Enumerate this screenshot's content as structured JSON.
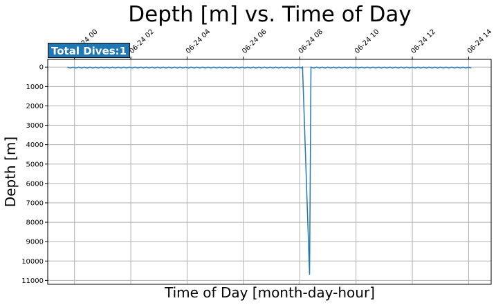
{
  "chart_data": {
    "type": "line",
    "title": "Depth [m] vs. Time of Day",
    "xlabel": "Time of Day [month-day-hour]",
    "ylabel": "Depth [m]",
    "badge": "Total Dives:1",
    "y_inverted": true,
    "ylim": [
      -400,
      11200
    ],
    "xlim": [
      -0.95,
      14.8
    ],
    "x_tick_values": [
      0,
      2,
      4,
      6,
      8,
      10,
      12,
      14
    ],
    "x_tick_labels": [
      "06-24 00",
      "06-24 02",
      "06-24 04",
      "06-24 06",
      "06-24 08",
      "06-24 10",
      "06-24 12",
      "06-24 14"
    ],
    "y_ticks": [
      0,
      1000,
      2000,
      3000,
      4000,
      5000,
      6000,
      7000,
      8000,
      9000,
      10000,
      11000
    ],
    "grid": true,
    "line_color": "#1f77b4",
    "surface": {
      "x_start": -0.25,
      "x_end": 14.1,
      "step": 0.2,
      "depth_min": 0,
      "depth_max": 50
    },
    "dive": {
      "x_start": 8.1,
      "x_bottom": 8.35,
      "x_end": 8.4,
      "max_depth": 10700
    }
  }
}
